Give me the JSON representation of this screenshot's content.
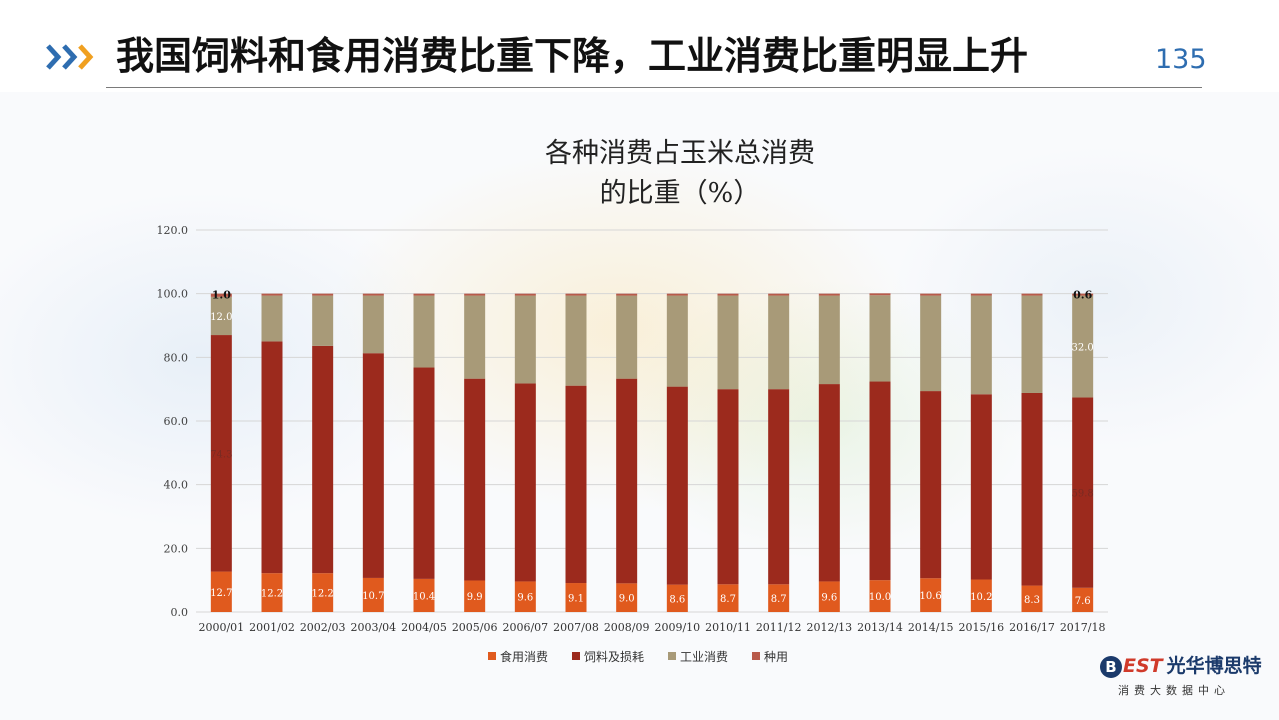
{
  "slide": {
    "title": "我国饲料和食用消费比重下降，工业消费比重明显上升",
    "page_number": "135"
  },
  "colors": {
    "food": "#e05a1e",
    "feed": "#9c2a1d",
    "industrial": "#a89a78",
    "seed": "#b85a4a",
    "accent_blue": "#2e6db0",
    "accent_orange": "#f0a020"
  },
  "icons": {
    "header": "triple-chevron-icon"
  },
  "chart_data": {
    "type": "bar",
    "stacked": true,
    "title": "各种消费占玉米总消费的比重（%）",
    "title_lines": [
      "各种消费占玉米总消费",
      "的比重（%）"
    ],
    "xlabel": "",
    "ylabel": "",
    "ylim": [
      0,
      120
    ],
    "yticks": [
      "0.0",
      "20.0",
      "40.0",
      "60.0",
      "80.0",
      "100.0",
      "120.0"
    ],
    "grid": true,
    "legend_position": "bottom",
    "categories": [
      "2000/01",
      "2001/02",
      "2002/03",
      "2003/04",
      "2004/05",
      "2005/06",
      "2006/07",
      "2007/08",
      "2008/09",
      "2009/10",
      "2010/11",
      "2011/12",
      "2012/13",
      "2013/14",
      "2014/15",
      "2015/16",
      "2016/17",
      "2017/18"
    ],
    "series": [
      {
        "name": "食用消费",
        "values": [
          12.7,
          12.2,
          12.2,
          10.7,
          10.4,
          9.9,
          9.6,
          9.1,
          9.0,
          8.6,
          8.7,
          8.7,
          9.6,
          10.0,
          10.6,
          10.2,
          8.3,
          7.6
        ]
      },
      {
        "name": "饲料及损耗",
        "values": [
          74.3,
          72.8,
          71.4,
          70.6,
          66.4,
          63.4,
          62.2,
          62.0,
          64.3,
          62.2,
          61.3,
          61.3,
          62.0,
          62.4,
          58.8,
          58.2,
          60.5,
          59.8
        ]
      },
      {
        "name": "工业消费",
        "values": [
          12.0,
          14.4,
          15.8,
          18.1,
          22.6,
          26.1,
          27.6,
          28.3,
          26.1,
          28.6,
          29.4,
          29.4,
          27.8,
          27.1,
          30.0,
          31.0,
          30.6,
          32.0
        ]
      },
      {
        "name": "种用",
        "values": [
          1.0,
          0.6,
          0.6,
          0.6,
          0.6,
          0.6,
          0.6,
          0.6,
          0.6,
          0.6,
          0.6,
          0.6,
          0.6,
          0.6,
          0.6,
          0.6,
          0.6,
          0.6
        ]
      }
    ],
    "data_labels": {
      "food": [
        "12.7",
        "12.2",
        "12.2",
        "10.7",
        "10.4",
        "9.9",
        "9.6",
        "9.1",
        "9.0",
        "8.6",
        "8.7",
        "8.7",
        "9.6",
        "10.0",
        "10.6",
        "10.2",
        "8.3",
        "7.6"
      ],
      "feed_first": "74.3",
      "feed_last": "59.8",
      "industrial_first": "12.0",
      "industrial_last": "32.0",
      "seed_first": "1.0",
      "seed_last": "0.6"
    }
  },
  "logo": {
    "badge": "B",
    "letters": "EST",
    "name": "光华博思特",
    "tagline": "消费大数据中心"
  }
}
